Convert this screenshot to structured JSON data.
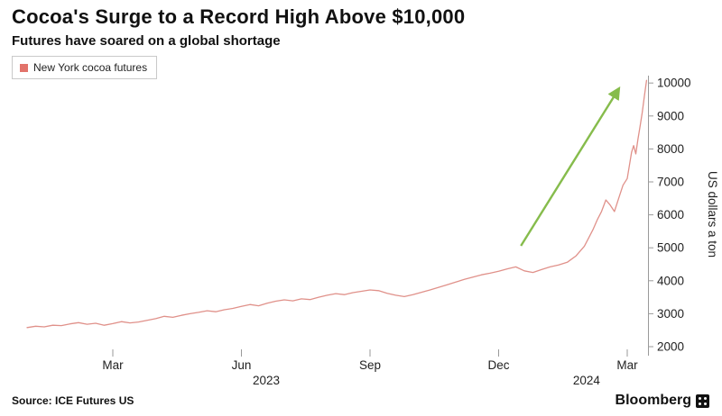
{
  "header": {
    "title": "Cocoa's Surge to a Record High Above $10,000",
    "subtitle": "Futures have soared on a global shortage"
  },
  "legend": {
    "label": "New York cocoa futures",
    "marker_color": "#e2736b"
  },
  "footer": {
    "source": "Source: ICE Futures US",
    "brand": "Bloomberg"
  },
  "chart_data": {
    "type": "line",
    "title": "Cocoa's Surge to a Record High Above $10,000",
    "subtitle": "Futures have soared on a global shortage",
    "ylabel": "US dollars a ton",
    "ylim": [
      2000,
      10400
    ],
    "yticks": [
      2000,
      3000,
      4000,
      5000,
      6000,
      7000,
      8000,
      9000,
      10000
    ],
    "x_unit": "months since Jan 2023",
    "xticks": [
      {
        "label": "Mar",
        "month": 2
      },
      {
        "label": "Jun",
        "month": 5
      },
      {
        "label": "Sep",
        "month": 8
      },
      {
        "label": "Dec",
        "month": 11
      },
      {
        "label": "Mar",
        "month": 14
      }
    ],
    "year_labels": [
      {
        "label": "2023",
        "month": 5.58
      },
      {
        "label": "2024",
        "month": 13.05
      }
    ],
    "legend_position": "top-left",
    "grid": false,
    "series": [
      {
        "name": "New York cocoa futures",
        "color": "#e0918a",
        "points": [
          [
            0.0,
            2580
          ],
          [
            0.2,
            2620
          ],
          [
            0.4,
            2600
          ],
          [
            0.6,
            2650
          ],
          [
            0.8,
            2640
          ],
          [
            1.0,
            2690
          ],
          [
            1.2,
            2730
          ],
          [
            1.4,
            2680
          ],
          [
            1.6,
            2710
          ],
          [
            1.8,
            2650
          ],
          [
            2.0,
            2700
          ],
          [
            2.2,
            2760
          ],
          [
            2.4,
            2720
          ],
          [
            2.6,
            2750
          ],
          [
            2.8,
            2800
          ],
          [
            3.0,
            2850
          ],
          [
            3.2,
            2920
          ],
          [
            3.4,
            2890
          ],
          [
            3.6,
            2950
          ],
          [
            3.8,
            3000
          ],
          [
            4.0,
            3040
          ],
          [
            4.2,
            3090
          ],
          [
            4.4,
            3060
          ],
          [
            4.6,
            3120
          ],
          [
            4.8,
            3160
          ],
          [
            5.0,
            3220
          ],
          [
            5.2,
            3280
          ],
          [
            5.4,
            3240
          ],
          [
            5.6,
            3320
          ],
          [
            5.8,
            3380
          ],
          [
            6.0,
            3420
          ],
          [
            6.2,
            3390
          ],
          [
            6.4,
            3450
          ],
          [
            6.6,
            3430
          ],
          [
            6.8,
            3500
          ],
          [
            7.0,
            3560
          ],
          [
            7.2,
            3610
          ],
          [
            7.4,
            3580
          ],
          [
            7.6,
            3640
          ],
          [
            7.8,
            3680
          ],
          [
            8.0,
            3720
          ],
          [
            8.2,
            3700
          ],
          [
            8.4,
            3620
          ],
          [
            8.6,
            3560
          ],
          [
            8.8,
            3520
          ],
          [
            9.0,
            3580
          ],
          [
            9.2,
            3650
          ],
          [
            9.4,
            3720
          ],
          [
            9.6,
            3800
          ],
          [
            9.8,
            3880
          ],
          [
            10.0,
            3960
          ],
          [
            10.2,
            4040
          ],
          [
            10.4,
            4110
          ],
          [
            10.6,
            4180
          ],
          [
            10.8,
            4230
          ],
          [
            11.0,
            4290
          ],
          [
            11.2,
            4360
          ],
          [
            11.4,
            4420
          ],
          [
            11.6,
            4300
          ],
          [
            11.8,
            4250
          ],
          [
            12.0,
            4340
          ],
          [
            12.2,
            4420
          ],
          [
            12.4,
            4480
          ],
          [
            12.6,
            4560
          ],
          [
            12.8,
            4750
          ],
          [
            13.0,
            5050
          ],
          [
            13.1,
            5300
          ],
          [
            13.2,
            5550
          ],
          [
            13.3,
            5850
          ],
          [
            13.4,
            6100
          ],
          [
            13.5,
            6450
          ],
          [
            13.6,
            6300
          ],
          [
            13.7,
            6100
          ],
          [
            13.8,
            6500
          ],
          [
            13.9,
            6900
          ],
          [
            14.0,
            7100
          ],
          [
            14.05,
            7500
          ],
          [
            14.1,
            7900
          ],
          [
            14.15,
            8100
          ],
          [
            14.2,
            7850
          ],
          [
            14.25,
            8300
          ],
          [
            14.3,
            8700
          ],
          [
            14.35,
            9100
          ],
          [
            14.4,
            9600
          ],
          [
            14.45,
            10080
          ]
        ]
      }
    ],
    "annotation_arrow": {
      "from_month": 11.52,
      "from_value": 5060,
      "to_month": 13.81,
      "to_value": 9840,
      "color": "#86bc4c"
    }
  }
}
